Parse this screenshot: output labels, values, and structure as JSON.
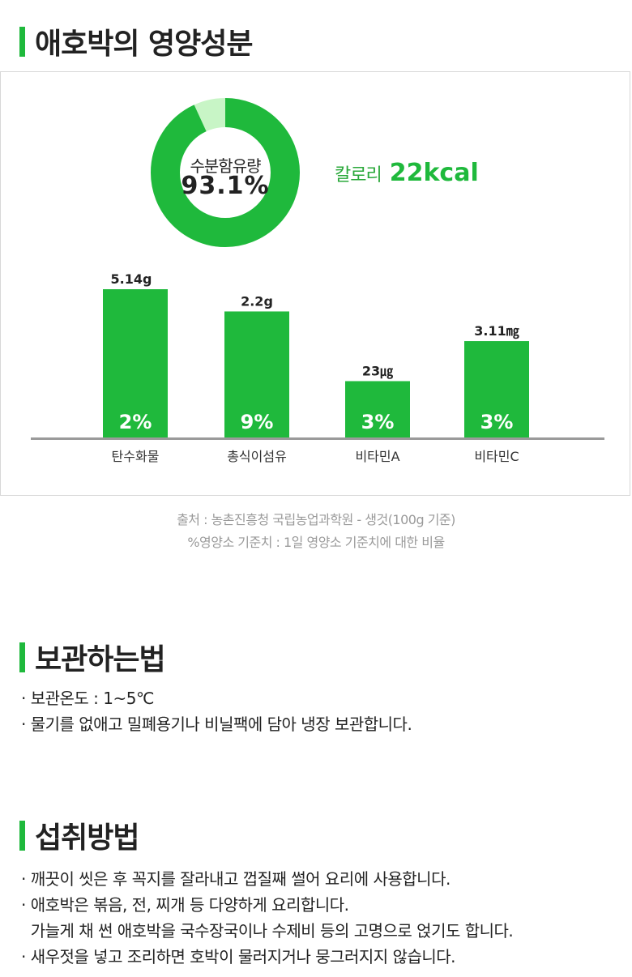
{
  "nutrition": {
    "title": "애호박의 영양성분",
    "moisture_label": "수분함유량",
    "moisture_value": "93.1%",
    "moisture_fraction": 0.931,
    "calorie_label": "칼로리",
    "calorie_value": "22kcal"
  },
  "chart_data": {
    "type": "bar",
    "categories": [
      "탄수화물",
      "총식이섬유",
      "비타민A",
      "비타민C"
    ],
    "values": [
      5.14,
      2.2,
      23,
      3.11
    ],
    "value_labels": [
      "5.14g",
      "2.2g",
      "23㎍",
      "3.11㎎"
    ],
    "percent_labels": [
      "2%",
      "9%",
      "3%",
      "3%"
    ],
    "bar_heights_relative": [
      1.0,
      0.85,
      0.38,
      0.65
    ],
    "title": "",
    "xlabel": "",
    "ylabel": "",
    "grid": false,
    "legend": "none",
    "colors": {
      "bar": "#1fb93c",
      "donut_main": "#1fb93c",
      "donut_rest": "#c8f5c6",
      "axis": "#9a9a9a"
    }
  },
  "source_lines": [
    "출처 : 농촌진흥청 국립농업과학원 - 생것(100g 기준)",
    "%영양소 기준치 : 1일 영양소 기준치에 대한 비율"
  ],
  "storage": {
    "title": "보관하는법",
    "items": [
      "· 보관온도 : 1~5℃",
      "· 물기를 없애고 밀폐용기나 비닐팩에 담아 냉장 보관합니다."
    ]
  },
  "intake": {
    "title": "섭취방법",
    "items": [
      "· 깨끗이 씻은 후 꼭지를 잘라내고 껍질째 썰어 요리에 사용합니다.",
      "· 애호박은 볶음, 전, 찌개 등 다양하게 요리합니다.",
      "  가늘게 채 썬 애호박을 국수장국이나 수제비 등의 고명으로 얹기도 합니다.",
      "· 새우젓을 넣고 조리하면 호박이 물러지거나 뭉그러지지 않습니다."
    ]
  }
}
